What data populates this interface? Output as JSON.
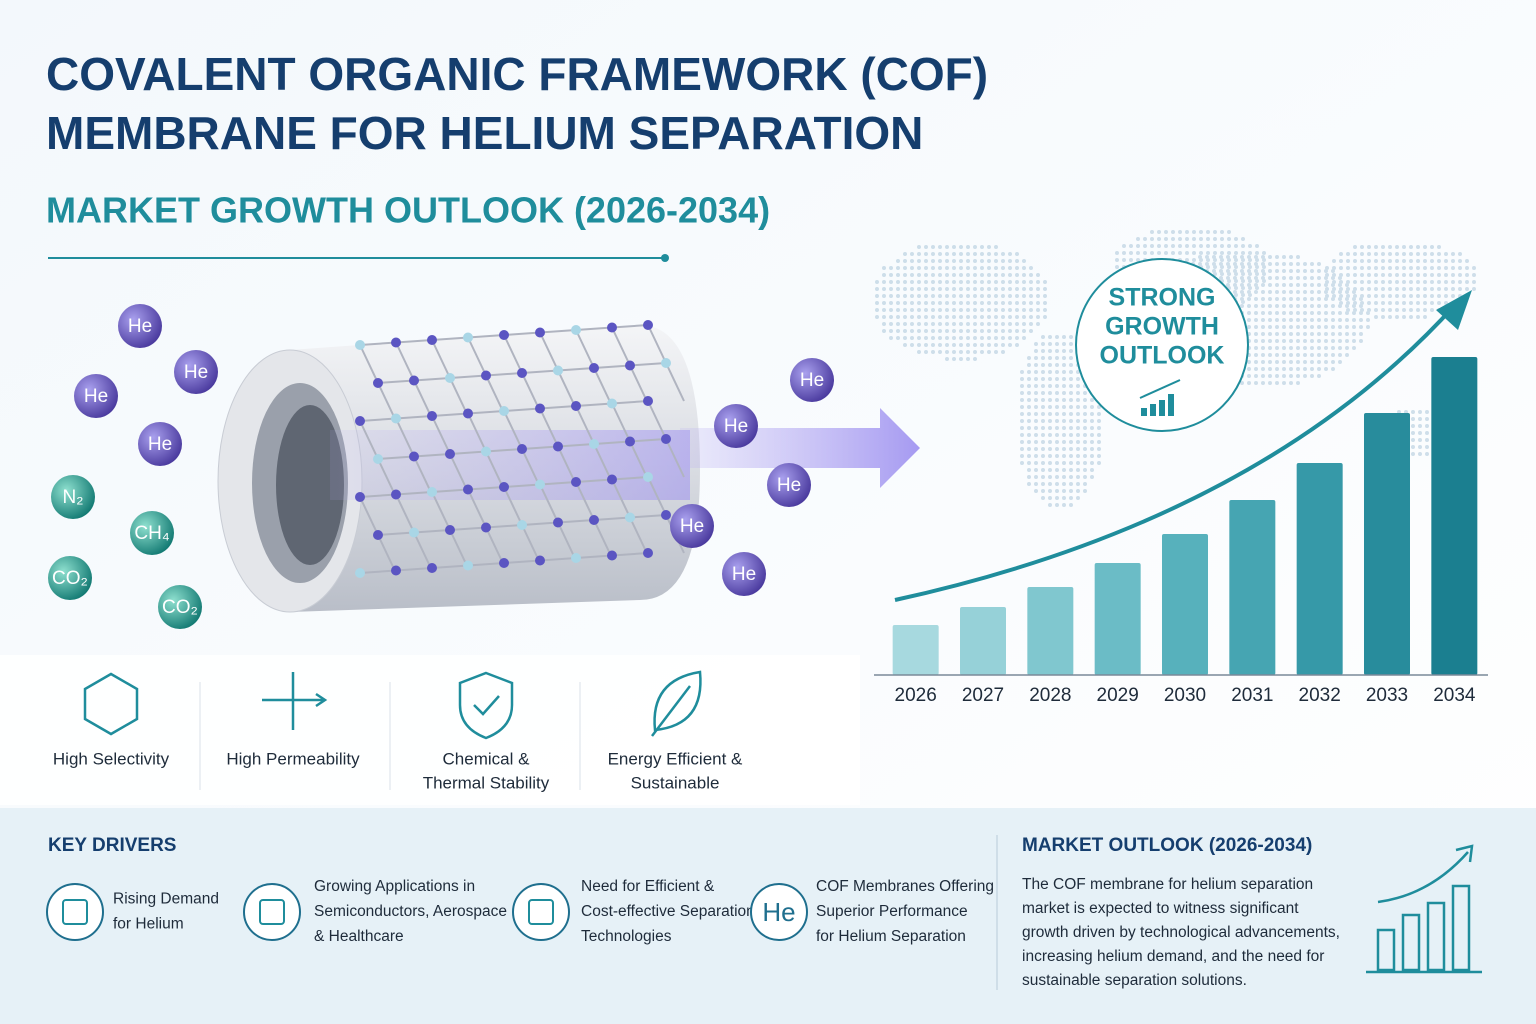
{
  "header": {
    "title_lines": [
      "COVALENT ORGANIC FRAMEWORK (COF)",
      "MEMBRANE FOR HELIUM SEPARATION"
    ],
    "subtitle": "MARKET GROWTH OUTLOOK (2026-2034)"
  },
  "molecules": [
    "He",
    "He",
    "He",
    "He",
    "N₂",
    "CH₄",
    "CO₂",
    "CO₂",
    "He",
    "He",
    "He",
    "He",
    "He"
  ],
  "badge": {
    "lines": [
      "STRONG",
      "GROWTH",
      "OUTLOOK"
    ]
  },
  "chart_data": {
    "type": "bar",
    "categories": [
      "2026",
      "2027",
      "2028",
      "2029",
      "2030",
      "2031",
      "2032",
      "2033",
      "2034"
    ],
    "values": [
      50,
      68,
      88,
      112,
      141,
      175,
      212,
      262,
      318
    ],
    "colors": [
      "#a7d9df",
      "#96d1d8",
      "#80c7cf",
      "#6bbcc6",
      "#57b1bc",
      "#46a5b2",
      "#3699a8",
      "#288c9c",
      "#1b7f90"
    ],
    "ylim": [
      0,
      330
    ]
  },
  "features": [
    {
      "lines": [
        "High Selectivity"
      ]
    },
    {
      "lines": [
        "High Permeability"
      ]
    },
    {
      "lines": [
        "Chemical &",
        "Thermal Stability"
      ]
    },
    {
      "lines": [
        "Energy Efficient &",
        "Sustainable"
      ]
    }
  ],
  "key_drivers": {
    "title": "KEY DRIVERS",
    "items": [
      {
        "lines": [
          "Rising Demand",
          "for Helium"
        ]
      },
      {
        "lines": [
          "Growing Applications in",
          "Semiconductors, Aerospace",
          "& Healthcare"
        ]
      },
      {
        "lines": [
          "Need for Efficient &",
          "Cost-effective Separation",
          "Technologies"
        ]
      },
      {
        "icon_text": "He",
        "lines": [
          "COF Membranes Offering",
          "Superior Performance",
          "for Helium Separation"
        ]
      }
    ]
  },
  "market_outlook": {
    "title": "MARKET OUTLOOK (2026-2034)",
    "lines": [
      "The COF membrane for helium separation",
      "market is expected to witness significant",
      "growth driven by technological advancements,",
      "increasing helium demand, and the need for",
      "sustainable separation solutions."
    ]
  }
}
